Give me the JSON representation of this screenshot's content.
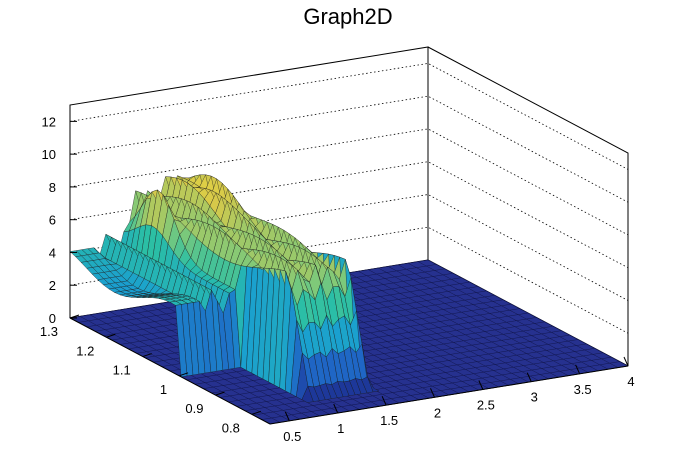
{
  "chart_data": {
    "type": "surface",
    "title": "Graph2D",
    "xlabel": "",
    "ylabel": "",
    "zlabel": "",
    "xlim": [
      0.3,
      4.0
    ],
    "ylim": [
      0.75,
      1.3
    ],
    "zlim": [
      0,
      13
    ],
    "x_ticks": [
      "0.5",
      "1",
      "1.5",
      "2",
      "2.5",
      "3",
      "3.5",
      "4"
    ],
    "y_ticks": [
      "0.8",
      "0.9",
      "1",
      "1.1",
      "1.2",
      "1.3"
    ],
    "z_ticks": [
      "0",
      "2",
      "4",
      "6",
      "8",
      "10",
      "12"
    ],
    "grid": true,
    "colormap": "viridis-like (blue to yellow)",
    "surface_regions": [
      {
        "region": "left wall at x≈0.3, y from 1.0 to 1.3",
        "z": 4.0
      },
      {
        "region": "ridge near x≈0.9, y≈1.2",
        "z": 8.0
      },
      {
        "region": "central plateau x≈1.0–1.6, y≈0.9–1.3",
        "z": 8.0
      },
      {
        "region": "peak near x≈1.4, y≈1.25",
        "z": 9.0
      },
      {
        "region": "narrow ridge at x≈1.65",
        "z": 6.0
      },
      {
        "region": "floor elsewhere",
        "z": 0.0
      }
    ]
  }
}
